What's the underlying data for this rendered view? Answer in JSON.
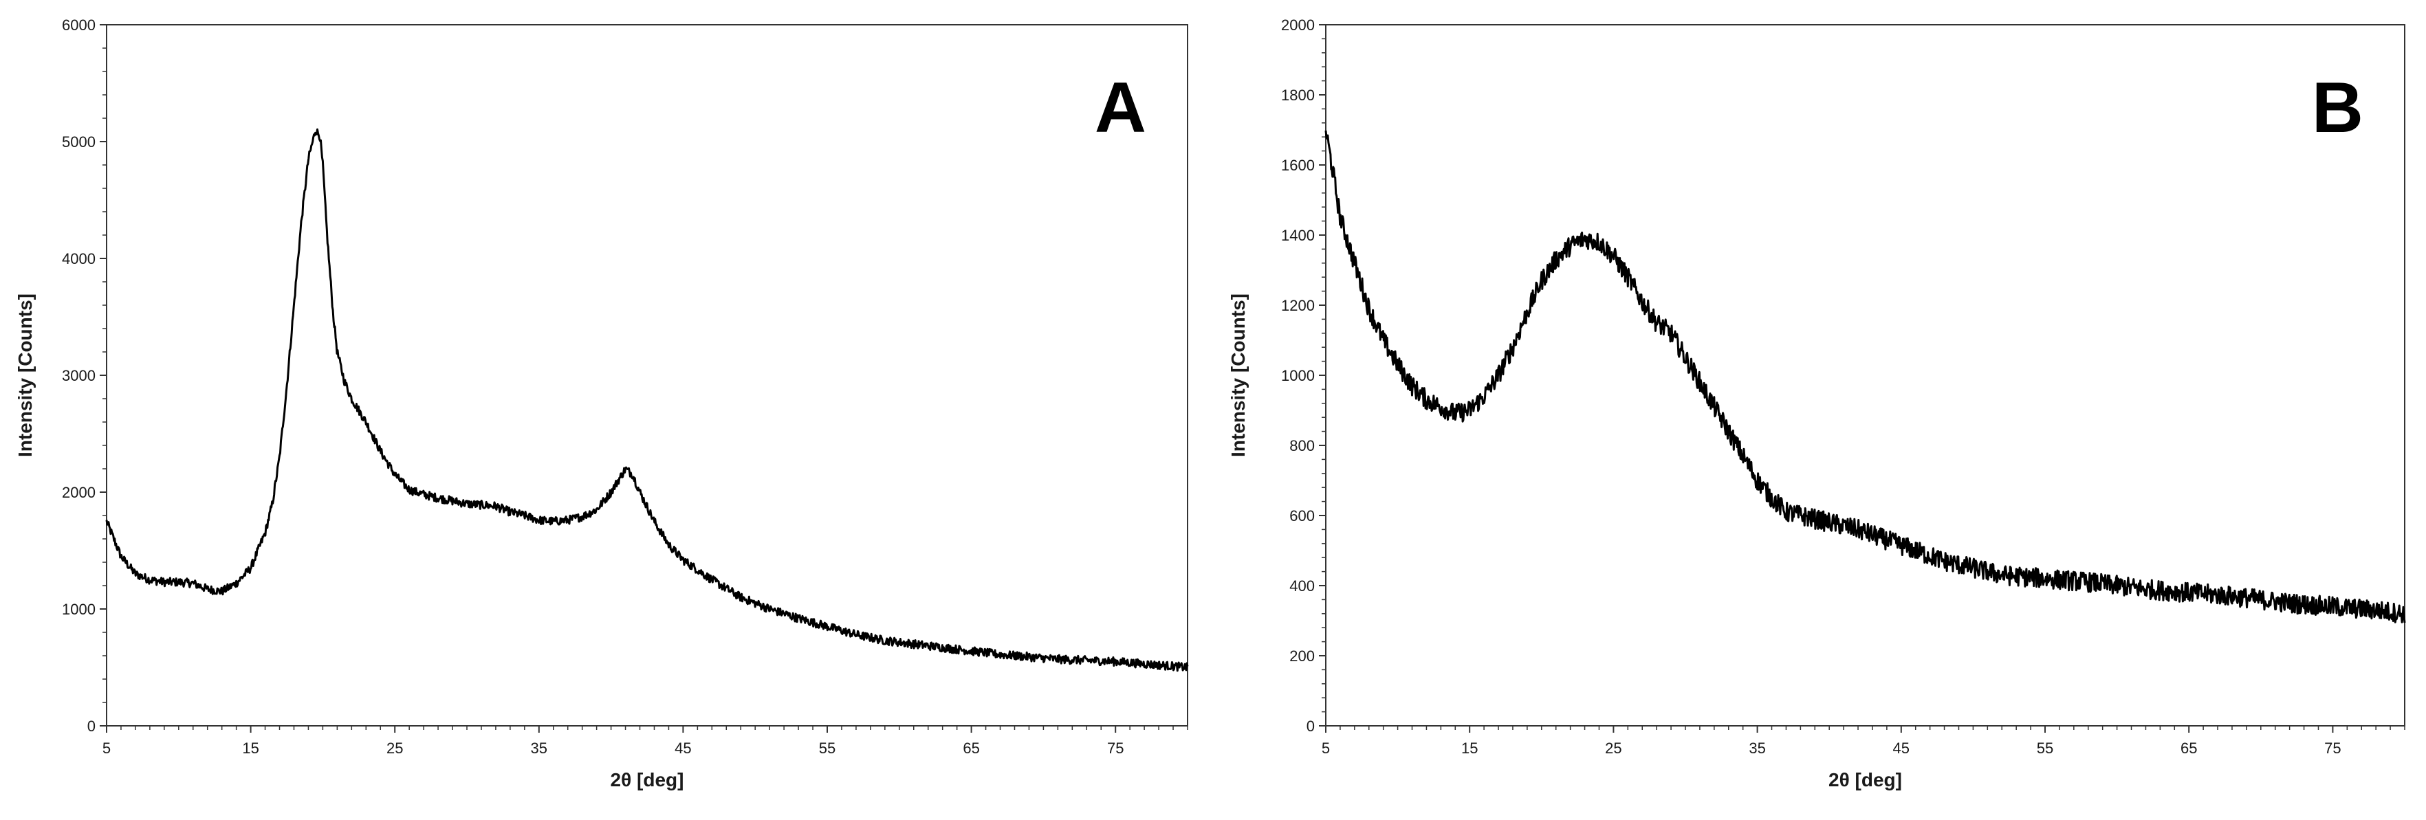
{
  "chart_data": [
    {
      "type": "line",
      "panel_label": "A",
      "xlabel": "2θ [deg]",
      "ylabel": "Intensity [Counts]",
      "xlim": [
        5,
        80
      ],
      "ylim": [
        0,
        6000
      ],
      "x_ticks": [
        5,
        15,
        25,
        35,
        45,
        55,
        65,
        75
      ],
      "y_ticks": [
        0,
        1000,
        2000,
        3000,
        4000,
        5000,
        6000
      ],
      "grid": false,
      "line_color": "#000000",
      "series": [
        {
          "x": [
            5,
            6,
            7,
            8,
            9,
            10,
            11,
            12,
            13,
            14,
            15,
            16,
            16.5,
            17,
            17.5,
            18,
            18.5,
            19,
            19.5,
            19.8,
            20,
            20.3,
            20.7,
            21,
            21.5,
            22,
            22.5,
            23,
            24,
            25,
            26,
            27,
            28,
            30,
            32,
            33,
            34,
            35,
            36,
            37,
            38,
            39,
            40,
            40.5,
            41,
            41.5,
            42,
            43,
            44,
            45,
            47,
            49,
            51,
            53,
            55,
            57,
            59,
            61,
            63,
            65,
            67,
            69,
            71,
            73,
            75,
            77,
            80
          ],
          "y": [
            1750,
            1450,
            1300,
            1250,
            1230,
            1230,
            1220,
            1170,
            1150,
            1220,
            1350,
            1650,
            1900,
            2300,
            2900,
            3600,
            4300,
            4850,
            5100,
            5050,
            4800,
            4200,
            3550,
            3200,
            2950,
            2800,
            2700,
            2600,
            2350,
            2150,
            2020,
            1980,
            1950,
            1900,
            1880,
            1830,
            1800,
            1760,
            1750,
            1760,
            1790,
            1850,
            2000,
            2100,
            2200,
            2150,
            2000,
            1750,
            1550,
            1420,
            1250,
            1100,
            1000,
            920,
            850,
            780,
            730,
            700,
            670,
            640,
            610,
            590,
            570,
            560,
            550,
            530,
            500
          ]
        }
      ]
    },
    {
      "type": "line",
      "panel_label": "B",
      "xlabel": "2θ [deg]",
      "ylabel": "Intensity [Counts]",
      "xlim": [
        5,
        80
      ],
      "ylim": [
        0,
        2000
      ],
      "x_ticks": [
        5,
        15,
        25,
        35,
        45,
        55,
        65,
        75
      ],
      "y_ticks": [
        0,
        200,
        400,
        600,
        800,
        1000,
        1200,
        1400,
        1600,
        1800,
        2000
      ],
      "grid": false,
      "line_color": "#000000",
      "series": [
        {
          "x": [
            5,
            5.5,
            6,
            7,
            8,
            9,
            10,
            11,
            12,
            13,
            14,
            15,
            16,
            17,
            18,
            19,
            20,
            21,
            22,
            23,
            24,
            25,
            26,
            27,
            28,
            29,
            30,
            31,
            32,
            33,
            34,
            35,
            36,
            37,
            38,
            40,
            42,
            44,
            46,
            48,
            50,
            52,
            55,
            58,
            60,
            62,
            65,
            68,
            70,
            72,
            75,
            78,
            80
          ],
          "y": [
            1700,
            1580,
            1450,
            1320,
            1190,
            1100,
            1030,
            970,
            930,
            910,
            890,
            900,
            940,
            1000,
            1080,
            1180,
            1270,
            1330,
            1370,
            1390,
            1380,
            1340,
            1280,
            1210,
            1150,
            1120,
            1050,
            980,
            910,
            840,
            770,
            700,
            650,
            610,
            600,
            580,
            560,
            530,
            500,
            470,
            450,
            430,
            420,
            410,
            400,
            390,
            380,
            370,
            360,
            350,
            340,
            330,
            320
          ]
        }
      ]
    }
  ]
}
